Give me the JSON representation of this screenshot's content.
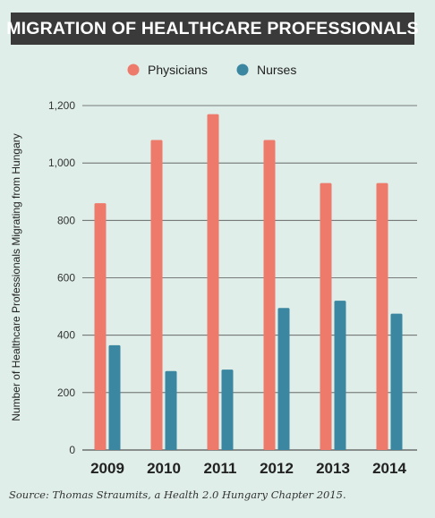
{
  "title": "MIGRATION OF HEALTHCARE PROFESSIONALS",
  "source_note": "Source: Thomas Straumits, a Health 2.0 Hungary Chapter 2015.",
  "colors": {
    "physicians": "#ee7a6c",
    "nurses": "#3b86a0",
    "background": "#dfeee9",
    "title_bg": "#3a3a3a",
    "grid": "#555555"
  },
  "chart_data": {
    "type": "bar",
    "title": "MIGRATION OF HEALTHCARE PROFESSIONALS",
    "categories": [
      "2009",
      "2010",
      "2011",
      "2012",
      "2013",
      "2014"
    ],
    "series": [
      {
        "name": "Physicians",
        "values": [
          860,
          1080,
          1170,
          1080,
          930,
          930
        ]
      },
      {
        "name": "Nurses",
        "values": [
          365,
          275,
          280,
          495,
          520,
          475
        ]
      }
    ],
    "xlabel": "",
    "ylabel": "Number of Healthcare Professionals Migrating from Hungary",
    "ylim": [
      0,
      1200
    ],
    "yticks": [
      0,
      200,
      400,
      600,
      800,
      1000,
      1200
    ],
    "ytick_labels": [
      "0",
      "200",
      "400",
      "600",
      "800",
      "1,000",
      "1,200"
    ],
    "grid": true,
    "legend_position": "top-center"
  }
}
